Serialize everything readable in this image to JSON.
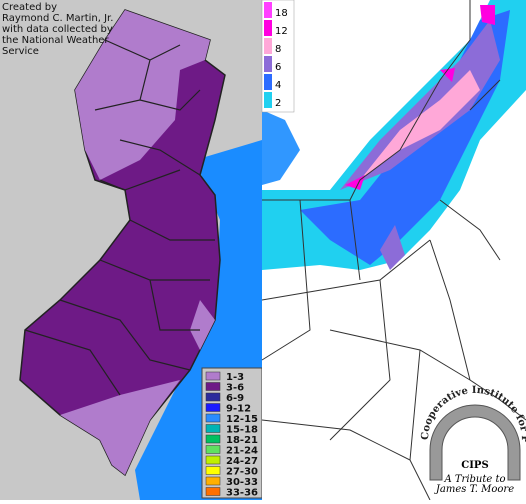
{
  "left_map": {
    "credit": [
      "Created by",
      "Raymond C. Martin, Jr.",
      "with data collected by",
      "the National Weather",
      "Service"
    ],
    "legend": [
      {
        "label": "1-3",
        "color": "#b07ccc"
      },
      {
        "label": "3-6",
        "color": "#6e1a86"
      },
      {
        "label": "6-9",
        "color": "#2c2c9c"
      },
      {
        "label": "9-12",
        "color": "#1a1aff"
      },
      {
        "label": "12-15",
        "color": "#2a8cff"
      },
      {
        "label": "15-18",
        "color": "#00b4b4"
      },
      {
        "label": "18-21",
        "color": "#00c060"
      },
      {
        "label": "21-24",
        "color": "#60e060"
      },
      {
        "label": "24-27",
        "color": "#c0f000"
      },
      {
        "label": "27-30",
        "color": "#ffff00"
      },
      {
        "label": "30-33",
        "color": "#ffb000"
      },
      {
        "label": "33-36",
        "color": "#ff7000"
      }
    ]
  },
  "right_map": {
    "legend": [
      {
        "label": "18",
        "color": "#ff40ff"
      },
      {
        "label": "12",
        "color": "#ff00e0"
      },
      {
        "label": "8",
        "color": "#ffa8d8"
      },
      {
        "label": "6",
        "color": "#8c6cd8"
      },
      {
        "label": "4",
        "color": "#2c6cff"
      },
      {
        "label": "2",
        "color": "#20d0f0"
      }
    ]
  },
  "logo": {
    "arc_text": "Cooperative Institute for Precipitation Systems",
    "name": "CIPS",
    "tribute": [
      "A Tribute to",
      "James T. Moore"
    ]
  }
}
